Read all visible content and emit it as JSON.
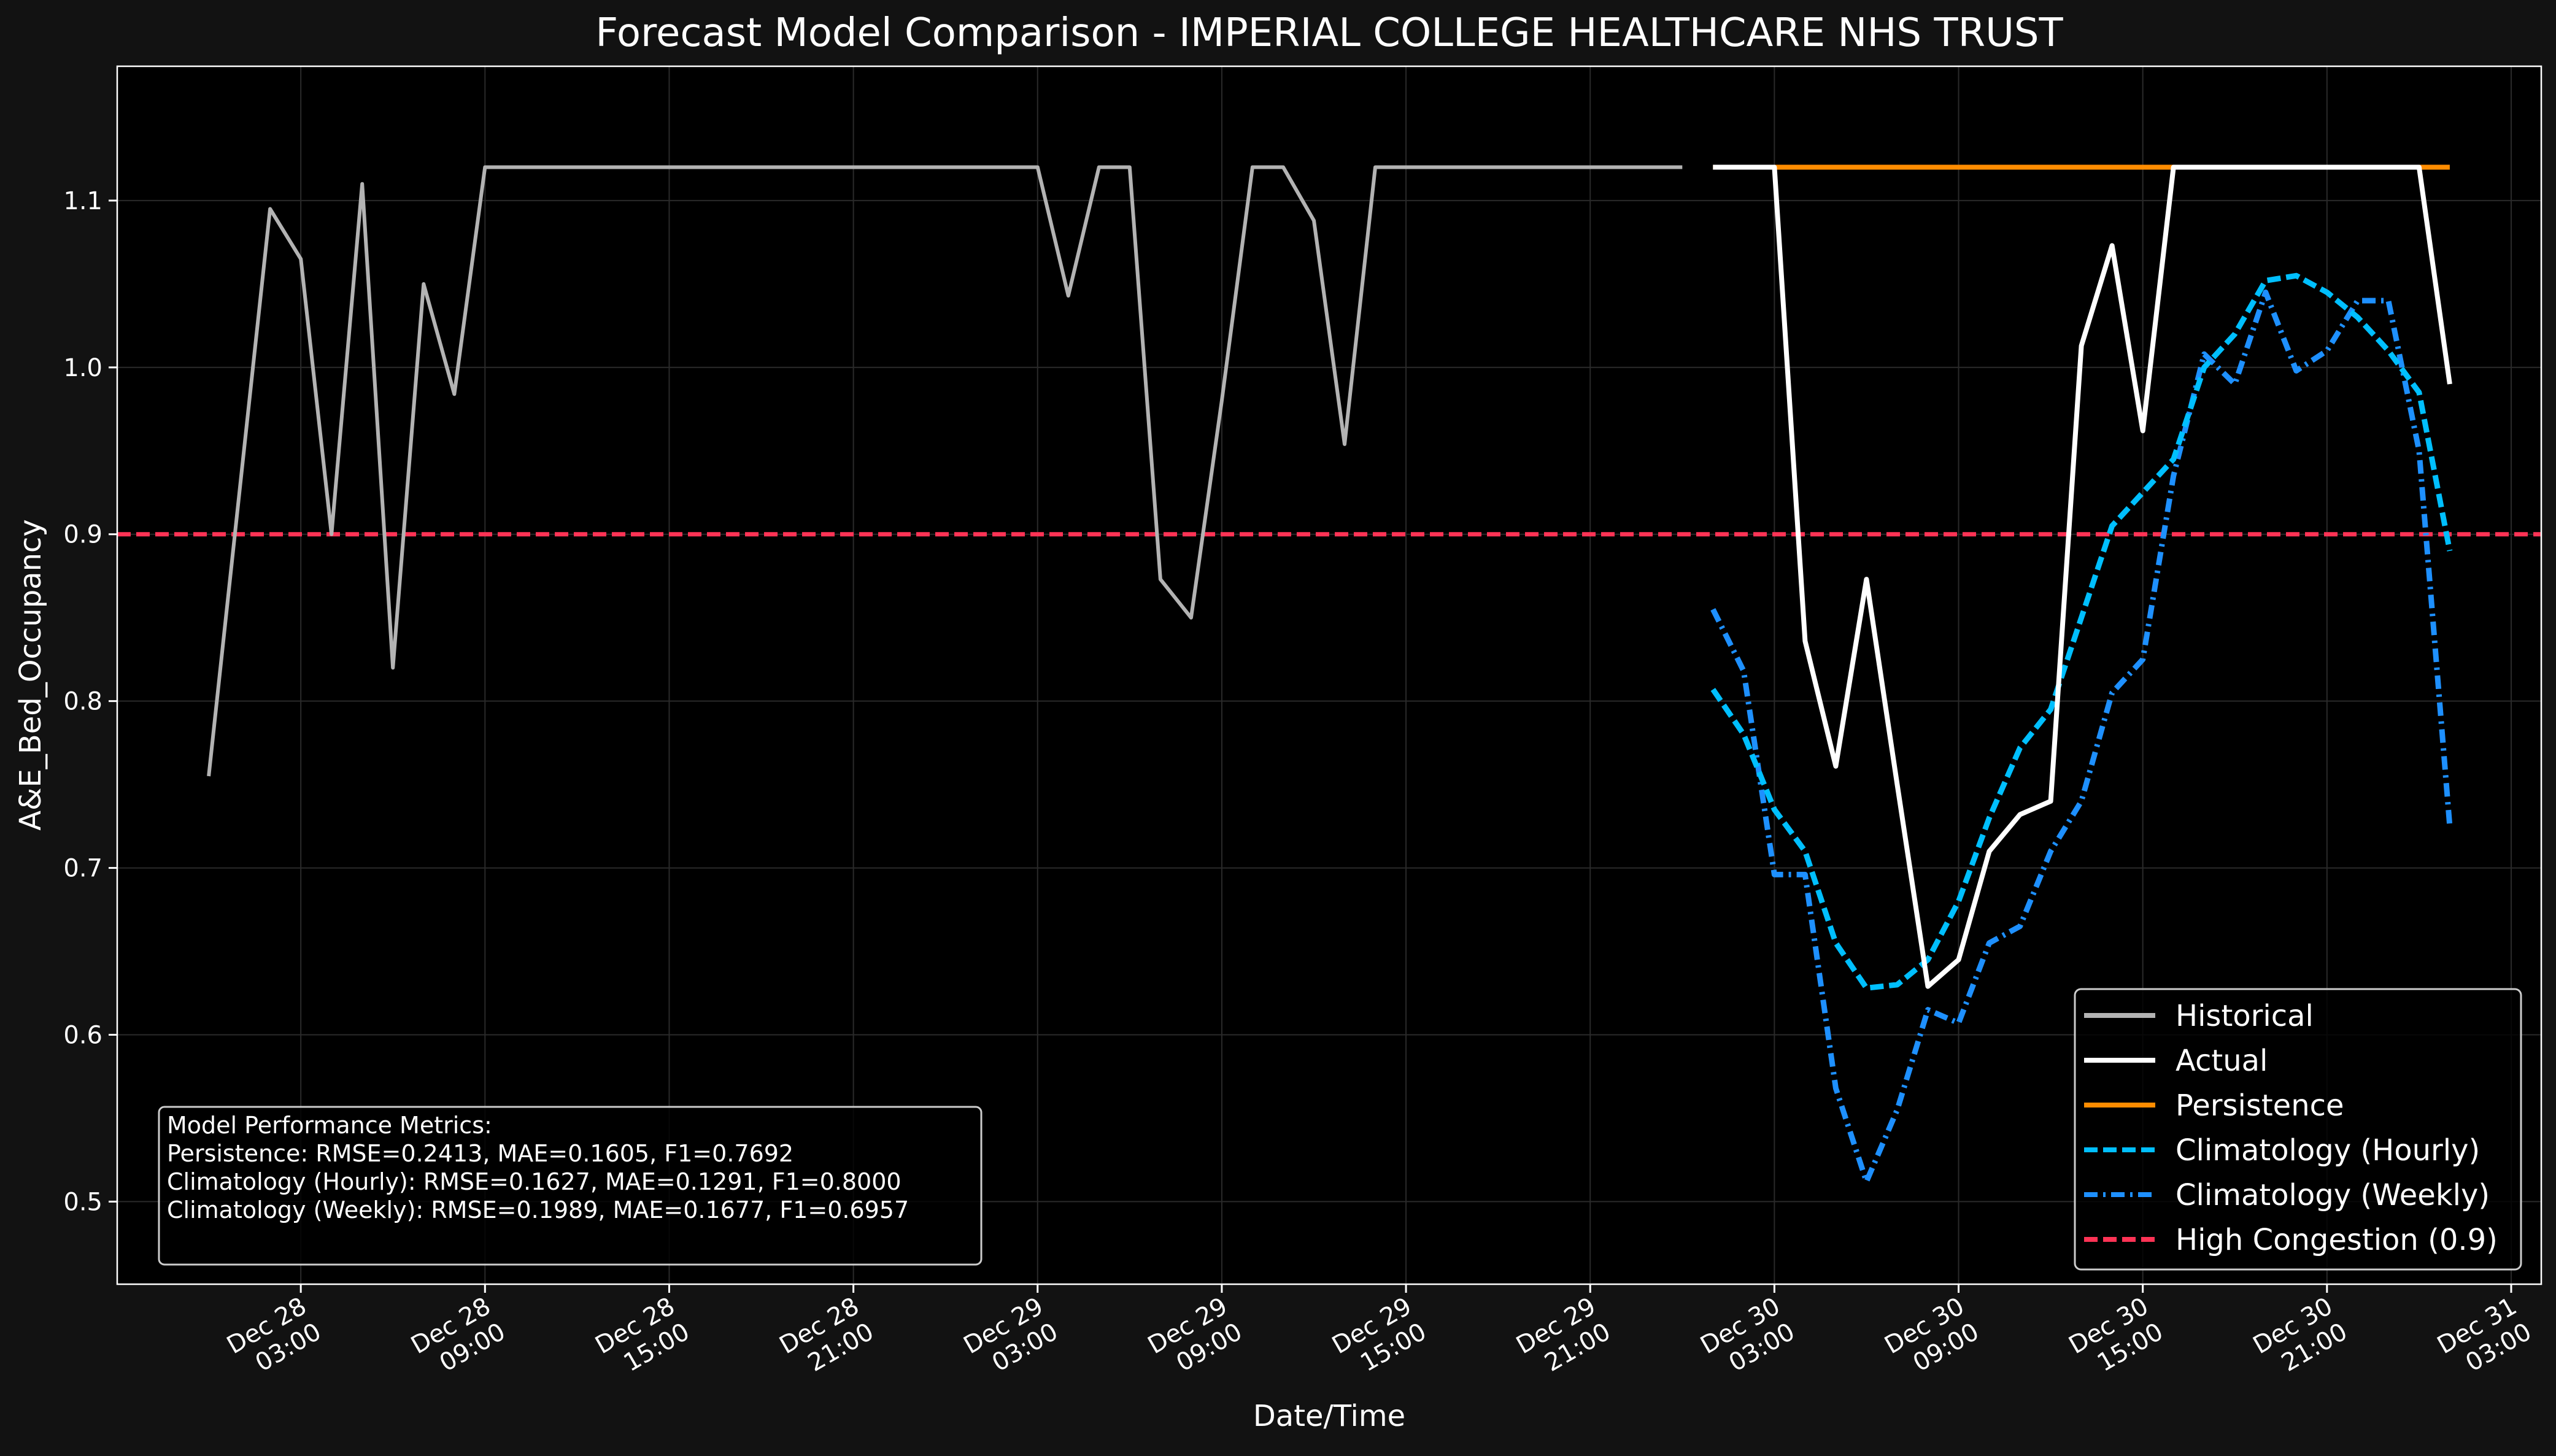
{
  "chart_data": {
    "type": "line",
    "title": "Forecast Model Comparison - IMPERIAL COLLEGE HEALTHCARE NHS TRUST",
    "xlabel": "Date/Time",
    "ylabel": "A&E_Bed_Occupancy",
    "x_unit": "hours since Dec 28 00:00",
    "xlim": [
      -2.98,
      75.98
    ],
    "ylim": [
      0.4505,
      1.1805
    ],
    "grid": true,
    "legend_position": "lower right",
    "x_ticks": [
      {
        "value": 3,
        "line1": "Dec 28",
        "line2": "03:00"
      },
      {
        "value": 9,
        "line1": "Dec 28",
        "line2": "09:00"
      },
      {
        "value": 15,
        "line1": "Dec 28",
        "line2": "15:00"
      },
      {
        "value": 21,
        "line1": "Dec 28",
        "line2": "21:00"
      },
      {
        "value": 27,
        "line1": "Dec 29",
        "line2": "03:00"
      },
      {
        "value": 33,
        "line1": "Dec 29",
        "line2": "09:00"
      },
      {
        "value": 39,
        "line1": "Dec 29",
        "line2": "15:00"
      },
      {
        "value": 45,
        "line1": "Dec 29",
        "line2": "21:00"
      },
      {
        "value": 51,
        "line1": "Dec 30",
        "line2": "03:00"
      },
      {
        "value": 57,
        "line1": "Dec 30",
        "line2": "09:00"
      },
      {
        "value": 63,
        "line1": "Dec 30",
        "line2": "15:00"
      },
      {
        "value": 69,
        "line1": "Dec 30",
        "line2": "21:00"
      },
      {
        "value": 75,
        "line1": "Dec 31",
        "line2": "03:00"
      }
    ],
    "y_ticks": [
      {
        "value": 0.5,
        "label": "0.5"
      },
      {
        "value": 0.6,
        "label": "0.6"
      },
      {
        "value": 0.7,
        "label": "0.7"
      },
      {
        "value": 0.8,
        "label": "0.8"
      },
      {
        "value": 0.9,
        "label": "0.9"
      },
      {
        "value": 1.0,
        "label": "1.0"
      },
      {
        "value": 1.1,
        "label": "1.1"
      }
    ],
    "series": [
      {
        "name": "Historical",
        "color": "#b3b3b3",
        "style": "solid",
        "x": [
          0,
          1,
          2,
          3,
          4,
          5,
          6,
          7,
          8,
          9,
          10,
          11,
          12,
          13,
          14,
          15,
          16,
          17,
          18,
          19,
          20,
          21,
          22,
          23,
          24,
          25,
          26,
          27,
          28,
          29,
          30,
          31,
          32,
          33,
          34,
          35,
          36,
          37,
          38,
          39,
          40,
          41,
          42,
          43,
          44,
          45,
          46,
          47,
          48
        ],
        "y": [
          0.755,
          0.925,
          1.095,
          1.065,
          0.9,
          1.11,
          0.82,
          1.05,
          0.984,
          1.12,
          1.12,
          1.12,
          1.12,
          1.12,
          1.12,
          1.12,
          1.12,
          1.12,
          1.12,
          1.12,
          1.12,
          1.12,
          1.12,
          1.12,
          1.12,
          1.12,
          1.12,
          1.12,
          1.043,
          1.12,
          1.12,
          0.873,
          0.85,
          0.98,
          1.12,
          1.12,
          1.088,
          0.954,
          1.12,
          1.12,
          1.12,
          1.12,
          1.12,
          1.12,
          1.12,
          1.12,
          1.12,
          1.12,
          1.12
        ]
      },
      {
        "name": "Actual",
        "color": "#ffffff",
        "style": "solid",
        "x": [
          49,
          50,
          51,
          52,
          53,
          54,
          55,
          56,
          57,
          58,
          59,
          60,
          61,
          62,
          63,
          64,
          65,
          66,
          67,
          68,
          69,
          70,
          71,
          72,
          73
        ],
        "y": [
          1.12,
          1.12,
          1.12,
          0.836,
          0.761,
          0.873,
          0.75,
          0.629,
          0.645,
          0.71,
          0.732,
          0.74,
          1.013,
          1.073,
          0.962,
          1.12,
          1.12,
          1.12,
          1.12,
          1.12,
          1.12,
          1.12,
          1.12,
          1.12,
          0.99
        ]
      },
      {
        "name": "Persistence",
        "color": "#ff8c00",
        "style": "solid",
        "x": [
          49,
          73
        ],
        "y": [
          1.12,
          1.12
        ]
      },
      {
        "name": "Climatology (Hourly)",
        "color": "#00bfff",
        "style": "dashed",
        "x": [
          49,
          50,
          51,
          52,
          53,
          54,
          55,
          56,
          57,
          58,
          59,
          60,
          61,
          62,
          63,
          64,
          65,
          66,
          67,
          68,
          69,
          70,
          71,
          72,
          73
        ],
        "y": [
          0.807,
          0.78,
          0.735,
          0.71,
          0.655,
          0.628,
          0.63,
          0.645,
          0.68,
          0.73,
          0.772,
          0.795,
          0.85,
          0.905,
          0.925,
          0.945,
          1.0,
          1.02,
          1.052,
          1.055,
          1.045,
          1.03,
          1.01,
          0.985,
          0.89
        ]
      },
      {
        "name": "Climatology (Weekly)",
        "color": "#1e90ff",
        "style": "dashdot",
        "x": [
          49,
          50,
          51,
          52,
          53,
          54,
          55,
          56,
          57,
          58,
          59,
          60,
          61,
          62,
          63,
          64,
          65,
          66,
          67,
          68,
          69,
          70,
          71,
          72,
          73
        ],
        "y": [
          0.855,
          0.818,
          0.696,
          0.696,
          0.568,
          0.512,
          0.555,
          0.615,
          0.607,
          0.655,
          0.665,
          0.71,
          0.74,
          0.805,
          0.825,
          0.935,
          1.008,
          0.99,
          1.045,
          0.998,
          1.01,
          1.04,
          1.04,
          0.95,
          0.725
        ]
      }
    ],
    "reference_lines": [
      {
        "name": "High Congestion (0.9)",
        "y": 0.9,
        "color": "#ff3355",
        "style": "dashed"
      }
    ],
    "metrics_box": {
      "lines": [
        "Model Performance Metrics:",
        "Persistence: RMSE=0.2413, MAE=0.1605, F1=0.7692",
        "Climatology (Hourly): RMSE=0.1627, MAE=0.1291, F1=0.8000",
        "Climatology (Weekly): RMSE=0.1989, MAE=0.1677, F1=0.6957"
      ]
    },
    "colors": {
      "figure_background": "#121212",
      "axes_background": "#000000",
      "text": "#ffffff",
      "grid": "#2a2a2a"
    }
  }
}
